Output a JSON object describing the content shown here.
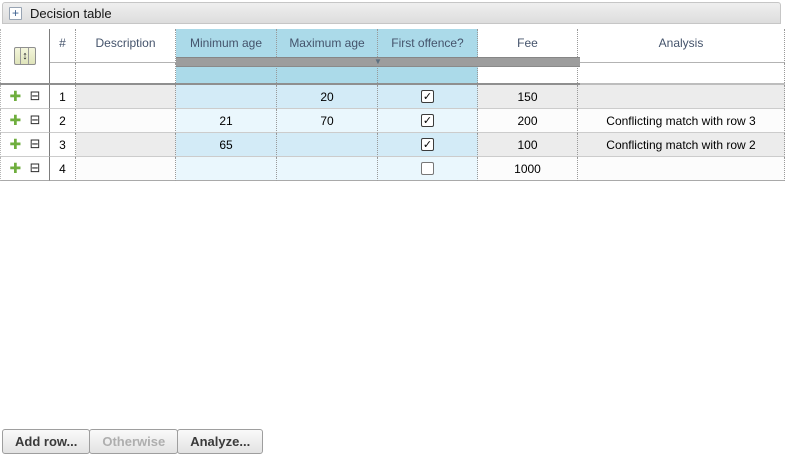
{
  "panel": {
    "title": "Decision table"
  },
  "icons": {
    "expander_glyph": "+",
    "merge_arrows": "↕",
    "splitter_arrow": "▼",
    "add_row_glyph": "✚",
    "collapse_row_glyph": "⊟",
    "check_glyph": "✓"
  },
  "colors": {
    "header_blue": "#abdae9",
    "cond_odd": "#d3ebf7",
    "cond_even": "#eaf7fd",
    "neutral_odd": "#ececec",
    "neutral_even": "#fcfcfc",
    "header_text": "#44536b",
    "splitter": "#9d9d9d"
  },
  "table": {
    "columns": [
      {
        "id": "row_ops",
        "label": ""
      },
      {
        "id": "num",
        "label": "#"
      },
      {
        "id": "description",
        "label": "Description"
      },
      {
        "id": "min_age",
        "label": "Minimum age",
        "condition": true
      },
      {
        "id": "max_age",
        "label": "Maximum age",
        "condition": true
      },
      {
        "id": "first_offence",
        "label": "First offence?",
        "condition": true
      },
      {
        "id": "fee",
        "label": "Fee"
      },
      {
        "id": "analysis",
        "label": "Analysis"
      }
    ],
    "rows": [
      {
        "num": "1",
        "description": "",
        "min_age": "",
        "max_age": "20",
        "first_offence": true,
        "fee": "150",
        "analysis": ""
      },
      {
        "num": "2",
        "description": "",
        "min_age": "21",
        "max_age": "70",
        "first_offence": true,
        "fee": "200",
        "analysis": "Conflicting match with row 3"
      },
      {
        "num": "3",
        "description": "",
        "min_age": "65",
        "max_age": "",
        "first_offence": true,
        "fee": "100",
        "analysis": "Conflicting match with row 2"
      },
      {
        "num": "4",
        "description": "",
        "min_age": "",
        "max_age": "",
        "first_offence": false,
        "fee": "1000",
        "analysis": ""
      }
    ]
  },
  "buttons": [
    {
      "label": "Add row...",
      "enabled": true
    },
    {
      "label": "Otherwise",
      "enabled": false
    },
    {
      "label": "Analyze...",
      "enabled": true
    }
  ]
}
